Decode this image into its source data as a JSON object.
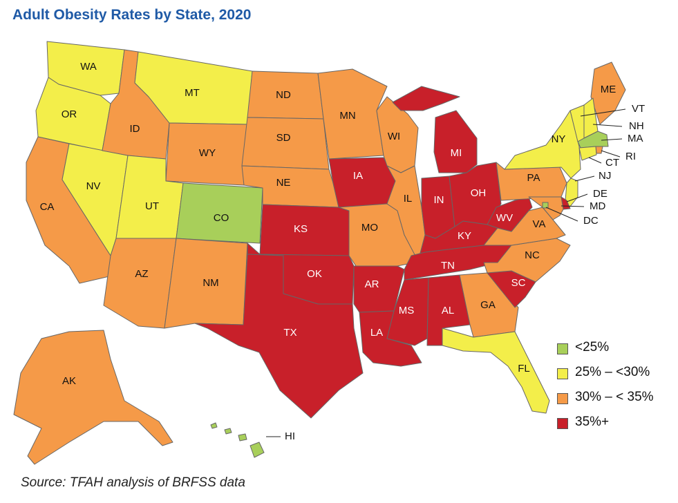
{
  "title": "Adult Obesity Rates by State, 2020",
  "source": "Source: TFAH analysis of BRFSS data",
  "colors": {
    "lt25": "#a8cf5a",
    "25to30": "#f3ee4a",
    "30to35": "#f59a48",
    "35plus": "#c8202a"
  },
  "legend": [
    {
      "label": "<25%",
      "category": "lt25"
    },
    {
      "label": "25% – <30%",
      "category": "25to30"
    },
    {
      "label": "30% – < 35%",
      "category": "30to35"
    },
    {
      "label": "35%+",
      "category": "35plus"
    }
  ],
  "states": [
    {
      "abbr": "WA",
      "category": "25to30"
    },
    {
      "abbr": "OR",
      "category": "25to30"
    },
    {
      "abbr": "CA",
      "category": "30to35"
    },
    {
      "abbr": "NV",
      "category": "25to30"
    },
    {
      "abbr": "ID",
      "category": "30to35"
    },
    {
      "abbr": "MT",
      "category": "25to30"
    },
    {
      "abbr": "WY",
      "category": "30to35"
    },
    {
      "abbr": "UT",
      "category": "25to30"
    },
    {
      "abbr": "CO",
      "category": "lt25"
    },
    {
      "abbr": "AZ",
      "category": "30to35"
    },
    {
      "abbr": "NM",
      "category": "30to35"
    },
    {
      "abbr": "ND",
      "category": "30to35"
    },
    {
      "abbr": "SD",
      "category": "30to35"
    },
    {
      "abbr": "NE",
      "category": "30to35"
    },
    {
      "abbr": "KS",
      "category": "35plus"
    },
    {
      "abbr": "OK",
      "category": "35plus"
    },
    {
      "abbr": "TX",
      "category": "35plus"
    },
    {
      "abbr": "MN",
      "category": "30to35"
    },
    {
      "abbr": "IA",
      "category": "35plus"
    },
    {
      "abbr": "MO",
      "category": "30to35"
    },
    {
      "abbr": "AR",
      "category": "35plus"
    },
    {
      "abbr": "LA",
      "category": "35plus"
    },
    {
      "abbr": "WI",
      "category": "30to35"
    },
    {
      "abbr": "IL",
      "category": "30to35"
    },
    {
      "abbr": "MI",
      "category": "35plus"
    },
    {
      "abbr": "IN",
      "category": "35plus"
    },
    {
      "abbr": "OH",
      "category": "35plus"
    },
    {
      "abbr": "KY",
      "category": "35plus"
    },
    {
      "abbr": "TN",
      "category": "35plus"
    },
    {
      "abbr": "MS",
      "category": "35plus"
    },
    {
      "abbr": "AL",
      "category": "35plus"
    },
    {
      "abbr": "GA",
      "category": "30to35"
    },
    {
      "abbr": "FL",
      "category": "25to30"
    },
    {
      "abbr": "SC",
      "category": "35plus"
    },
    {
      "abbr": "NC",
      "category": "30to35"
    },
    {
      "abbr": "VA",
      "category": "30to35"
    },
    {
      "abbr": "WV",
      "category": "35plus"
    },
    {
      "abbr": "PA",
      "category": "30to35"
    },
    {
      "abbr": "NY",
      "category": "25to30"
    },
    {
      "abbr": "ME",
      "category": "30to35"
    },
    {
      "abbr": "VT",
      "category": "25to30"
    },
    {
      "abbr": "NH",
      "category": "25to30"
    },
    {
      "abbr": "MA",
      "category": "lt25"
    },
    {
      "abbr": "RI",
      "category": "30to35"
    },
    {
      "abbr": "CT",
      "category": "25to30"
    },
    {
      "abbr": "NJ",
      "category": "25to30"
    },
    {
      "abbr": "DE",
      "category": "35plus"
    },
    {
      "abbr": "MD",
      "category": "30to35"
    },
    {
      "abbr": "DC",
      "category": "lt25"
    },
    {
      "abbr": "AK",
      "category": "30to35"
    },
    {
      "abbr": "HI",
      "category": "lt25"
    }
  ]
}
